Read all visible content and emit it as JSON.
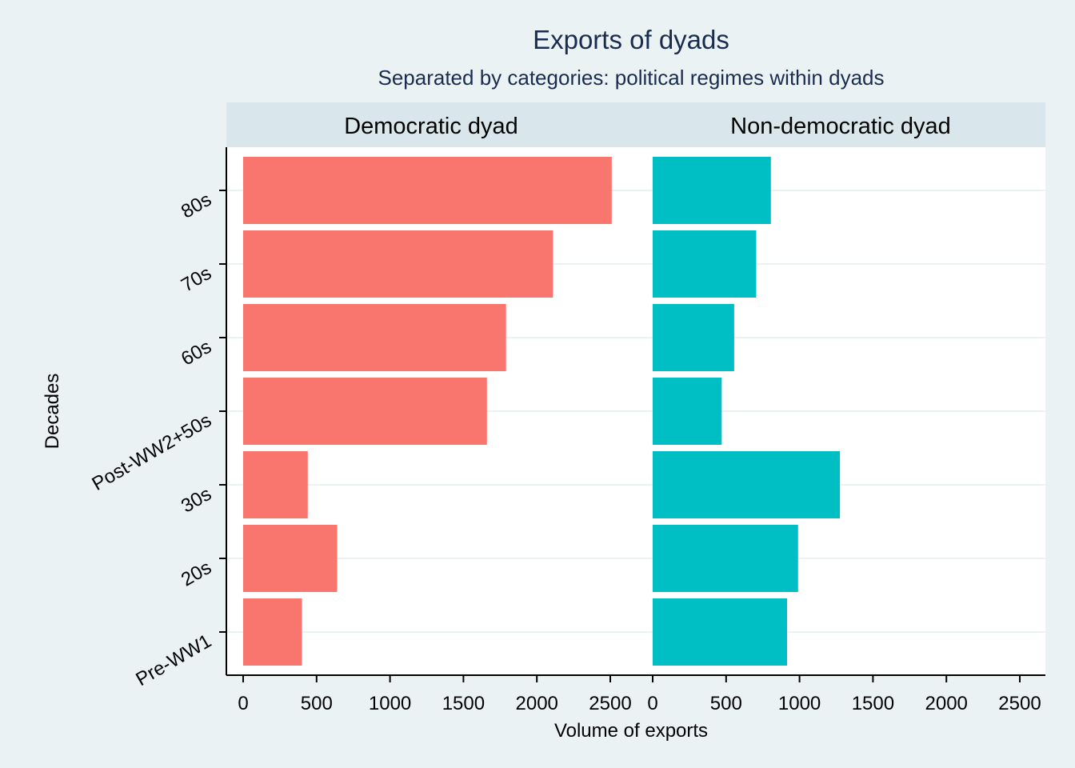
{
  "chart_data": {
    "type": "bar",
    "orientation": "horizontal",
    "title": "Exports of dyads",
    "subtitle": "Separated by categories: political regimes within dyads",
    "xlabel": "Volume of exports",
    "ylabel": "Decades",
    "categories": [
      "Pre-WW1",
      "20s",
      "30s",
      "Post-WW2+50s",
      "60s",
      "70s",
      "80s"
    ],
    "xlim": [
      0,
      2500
    ],
    "xticks": [
      0,
      500,
      1000,
      1500,
      2000,
      2500
    ],
    "grid": true,
    "legend": "none",
    "panels": [
      {
        "name": "Democratic dyad",
        "color": "#f8766d",
        "values": [
          400,
          640,
          440,
          1660,
          1790,
          2110,
          2510
        ]
      },
      {
        "name": "Non-democratic dyad",
        "color": "#00bfc4",
        "values": [
          915,
          990,
          1275,
          470,
          555,
          705,
          805
        ]
      }
    ]
  },
  "colors": {
    "background": "#eaf2f3",
    "panel": "#ffffff",
    "strip": "#d9e6eb",
    "gridline": "#eaf2f3",
    "text": "#1a2c4f"
  }
}
